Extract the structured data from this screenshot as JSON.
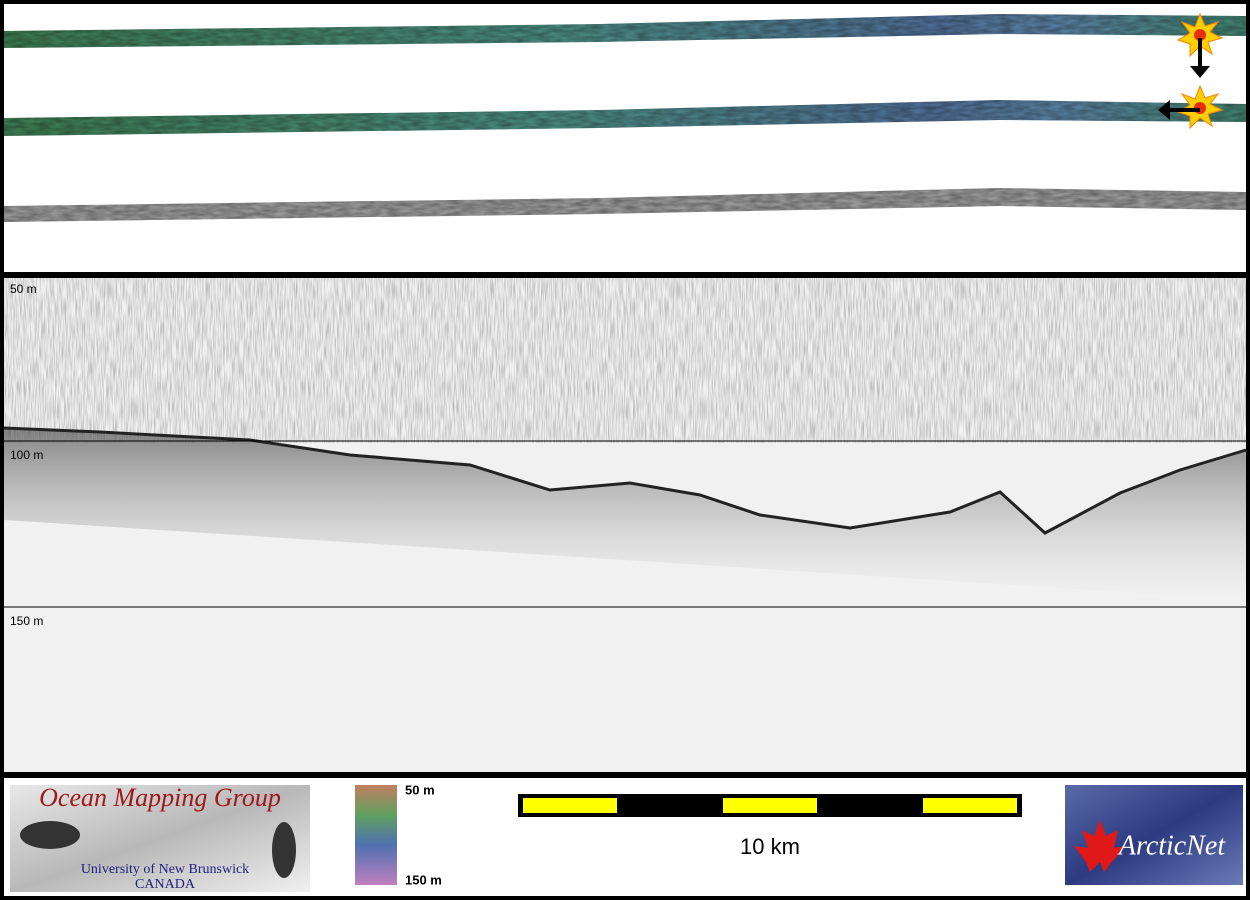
{
  "echogram": {
    "depth_labels": [
      "50 m",
      "100 m",
      "150 m"
    ]
  },
  "footer": {
    "logo_left": {
      "title": "Ocean Mapping Group",
      "subtitle": "University of New Brunswick",
      "country": "CANADA"
    },
    "color_bar": {
      "top_label": "50 m",
      "bottom_label": "150 m"
    },
    "scale_bar": {
      "label": "10 km"
    },
    "logo_right": {
      "label": "ArcticNet"
    }
  }
}
